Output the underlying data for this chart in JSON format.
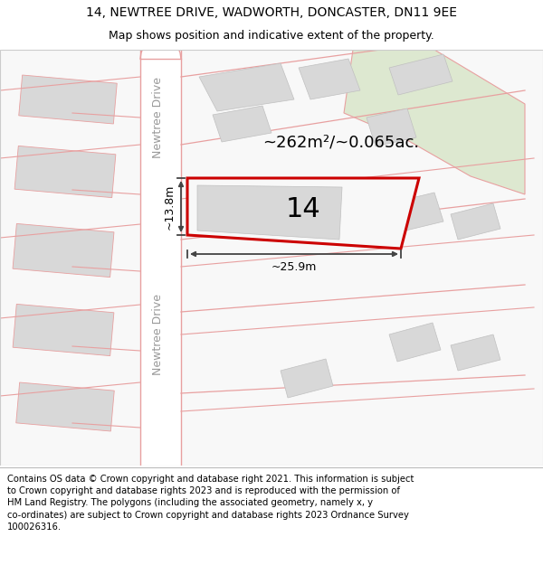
{
  "title_line1": "14, NEWTREE DRIVE, WADWORTH, DONCASTER, DN11 9EE",
  "title_line2": "Map shows position and indicative extent of the property.",
  "footer_lines": [
    "Contains OS data © Crown copyright and database right 2021. This information is subject to Crown copyright and database rights 2023 and is reproduced with the permission of",
    "HM Land Registry. The polygons (including the associated geometry, namely x, y",
    "co-ordinates) are subject to Crown copyright and database rights 2023 Ordnance Survey",
    "100026316."
  ],
  "area_label": "~262m²/~0.065ac.",
  "number_label": "14",
  "width_label": "~25.9m",
  "height_label": "~13.8m",
  "street_label": "Newtree Drive",
  "bg_color": "#ffffff",
  "map_bg": "#f2f2f2",
  "road_outline_color": "#e8a0a0",
  "building_fill": "#d8d8d8",
  "building_outline": "#c0c0c0",
  "green_area_color": "#dde8d0",
  "highlight_fill": "#f8f8f8",
  "highlight_outline": "#cc0000",
  "road_fill": "#ffffff",
  "dimension_color": "#444444",
  "title_fontsize": 10,
  "subtitle_fontsize": 9,
  "footer_fontsize": 7.2,
  "area_fontsize": 13,
  "num_fontsize": 22,
  "dim_fontsize": 9,
  "street_fontsize": 9
}
